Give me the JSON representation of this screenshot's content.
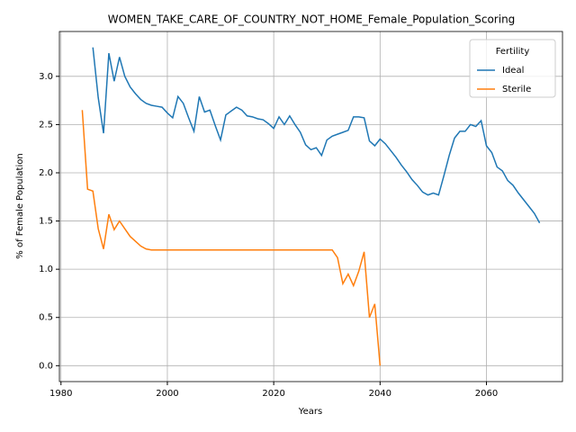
{
  "chart_data": {
    "type": "line",
    "title": "WOMEN_TAKE_CARE_OF_COUNTRY_NOT_HOME_Female_Population_Scoring",
    "xlabel": "Years",
    "ylabel": "% of Female Population",
    "x": [
      1984,
      1985,
      1986,
      1987,
      1988,
      1989,
      1990,
      1991,
      1992,
      1993,
      1994,
      1995,
      1996,
      1997,
      1998,
      1999,
      2000,
      2001,
      2002,
      2003,
      2004,
      2005,
      2006,
      2007,
      2008,
      2009,
      2010,
      2011,
      2012,
      2013,
      2014,
      2015,
      2016,
      2017,
      2018,
      2019,
      2020,
      2021,
      2022,
      2023,
      2024,
      2025,
      2026,
      2027,
      2028,
      2029,
      2030,
      2031,
      2032,
      2033,
      2034,
      2035,
      2036,
      2037,
      2038,
      2039,
      2040,
      2041,
      2042,
      2043,
      2044,
      2045,
      2046,
      2047,
      2048,
      2049,
      2050,
      2051,
      2052,
      2053,
      2054,
      2055,
      2056,
      2057,
      2058,
      2059,
      2060,
      2061,
      2062,
      2063,
      2064,
      2065,
      2066,
      2067,
      2068,
      2069,
      2070
    ],
    "series": [
      {
        "name": "Ideal",
        "color": "#1f77b4",
        "values": [
          null,
          null,
          3.3,
          2.78,
          2.41,
          3.24,
          2.95,
          3.2,
          3.0,
          2.89,
          2.82,
          2.76,
          2.72,
          2.7,
          2.69,
          2.68,
          2.62,
          2.57,
          2.79,
          2.72,
          2.57,
          2.43,
          2.79,
          2.63,
          2.65,
          2.49,
          2.34,
          2.6,
          2.64,
          2.68,
          2.65,
          2.59,
          2.58,
          2.56,
          2.55,
          2.51,
          2.46,
          2.58,
          2.5,
          2.59,
          2.5,
          2.42,
          2.29,
          2.24,
          2.26,
          2.18,
          2.34,
          2.38,
          2.4,
          2.42,
          2.44,
          2.58,
          2.58,
          2.57,
          2.33,
          2.28,
          2.35,
          2.3,
          2.23,
          2.16,
          2.08,
          2.01,
          1.93,
          1.87,
          1.8,
          1.77,
          1.79,
          1.77,
          1.97,
          2.18,
          2.36,
          2.43,
          2.43,
          2.5,
          2.48,
          2.54,
          2.28,
          2.21,
          2.06,
          2.02,
          1.92,
          1.87,
          1.79,
          1.72,
          1.65,
          1.58,
          1.48
        ]
      },
      {
        "name": "Sterile",
        "color": "#ff7f0e",
        "values": [
          2.65,
          1.83,
          1.81,
          1.42,
          1.21,
          1.57,
          1.41,
          1.5,
          1.42,
          1.34,
          1.29,
          1.24,
          1.21,
          1.2,
          1.2,
          1.2,
          1.2,
          1.2,
          1.2,
          1.2,
          1.2,
          1.2,
          1.2,
          1.2,
          1.2,
          1.2,
          1.2,
          1.2,
          1.2,
          1.2,
          1.2,
          1.2,
          1.2,
          1.2,
          1.2,
          1.2,
          1.2,
          1.2,
          1.2,
          1.2,
          1.2,
          1.2,
          1.2,
          1.2,
          1.2,
          1.2,
          1.2,
          1.2,
          1.12,
          0.85,
          0.95,
          0.83,
          0.98,
          1.18,
          0.5,
          0.64,
          0.0,
          null,
          null,
          null,
          null,
          null,
          null,
          null,
          null,
          null,
          null,
          null,
          null,
          null,
          null,
          null,
          null,
          null,
          null,
          null,
          null,
          null,
          null,
          null,
          null,
          null,
          null,
          null,
          null,
          null,
          null
        ]
      }
    ],
    "xlim": [
      1979.7,
      2074.3
    ],
    "xticks": [
      1980,
      2000,
      2020,
      2040,
      2060
    ],
    "ylim": [
      -0.165,
      3.465
    ],
    "yticks": [
      {
        "value": 0,
        "label": "0.0"
      },
      0.5,
      {
        "value": 1,
        "label": "1.0"
      },
      1.5,
      {
        "value": 2,
        "label": "2.0"
      },
      2.5,
      {
        "value": 3,
        "label": "3.0"
      }
    ],
    "grid": true,
    "legend_title": "Fertility",
    "legend_loc": "upper right"
  }
}
